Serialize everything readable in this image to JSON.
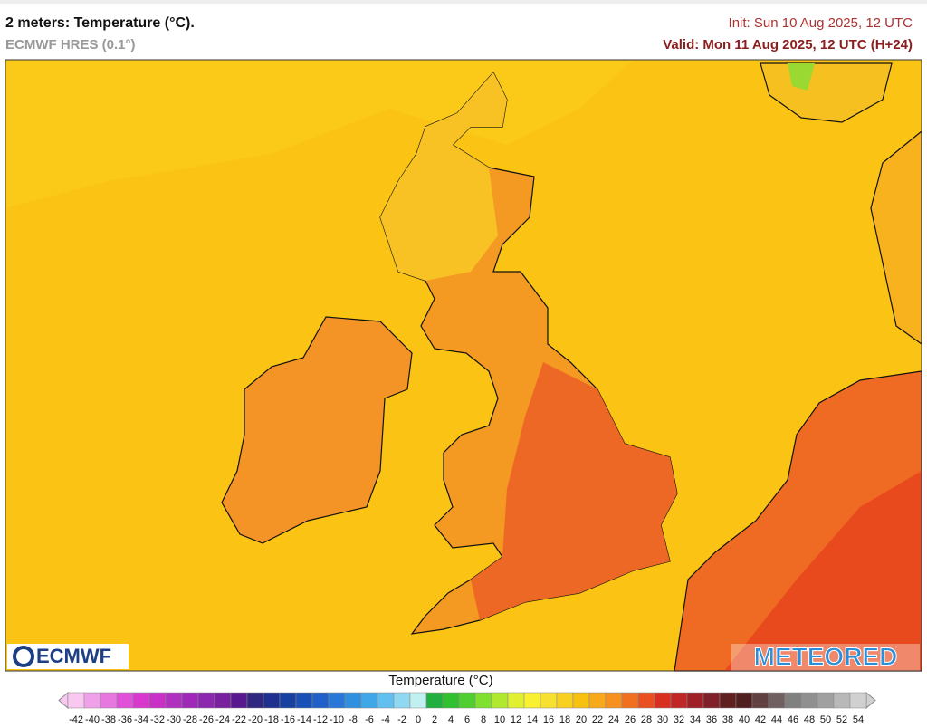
{
  "header": {
    "title": "2 meters: Temperature (°C).",
    "model": "ECMWF HRES (0.1°)",
    "init": "Init: Sun 10 Aug 2025, 12 UTC",
    "valid": "Valid: Mon 11 Aug 2025, 12 UTC (H+24)"
  },
  "logos": {
    "left": "ECMWF",
    "right": "METEORED"
  },
  "legend": {
    "title": "Temperature (°C)",
    "ticks": [
      -42,
      -40,
      -38,
      -36,
      -34,
      -32,
      -30,
      -28,
      -26,
      -24,
      -22,
      -20,
      -18,
      -16,
      -14,
      -12,
      -10,
      -8,
      -6,
      -4,
      -2,
      0,
      2,
      4,
      6,
      8,
      10,
      12,
      14,
      16,
      18,
      20,
      22,
      24,
      26,
      28,
      30,
      32,
      34,
      36,
      38,
      40,
      42,
      44,
      46,
      48,
      50,
      52,
      54
    ],
    "colors": [
      "#f8c8f0",
      "#f0a0e8",
      "#e878e0",
      "#e050d8",
      "#d838d0",
      "#c830c8",
      "#b030c0",
      "#a028b8",
      "#8c28b0",
      "#7820a0",
      "#581890",
      "#302880",
      "#203090",
      "#1840a0",
      "#1850b8",
      "#2060c8",
      "#2878d8",
      "#3090e0",
      "#40a8e8",
      "#60c0f0",
      "#90d8f0",
      "#c0f0f0",
      "#20b040",
      "#30c030",
      "#50d030",
      "#80e030",
      "#b0e830",
      "#e0f030",
      "#f8f030",
      "#f8e030",
      "#f8d020",
      "#f8c010",
      "#f8a818",
      "#f89020",
      "#f07020",
      "#e85020",
      "#d83020",
      "#c02828",
      "#a02028",
      "#802028",
      "#602020",
      "#502020",
      "#604040",
      "#706060",
      "#808080",
      "#909090",
      "#a0a0a0",
      "#b8b8b8",
      "#d0d0d0"
    ]
  }
}
